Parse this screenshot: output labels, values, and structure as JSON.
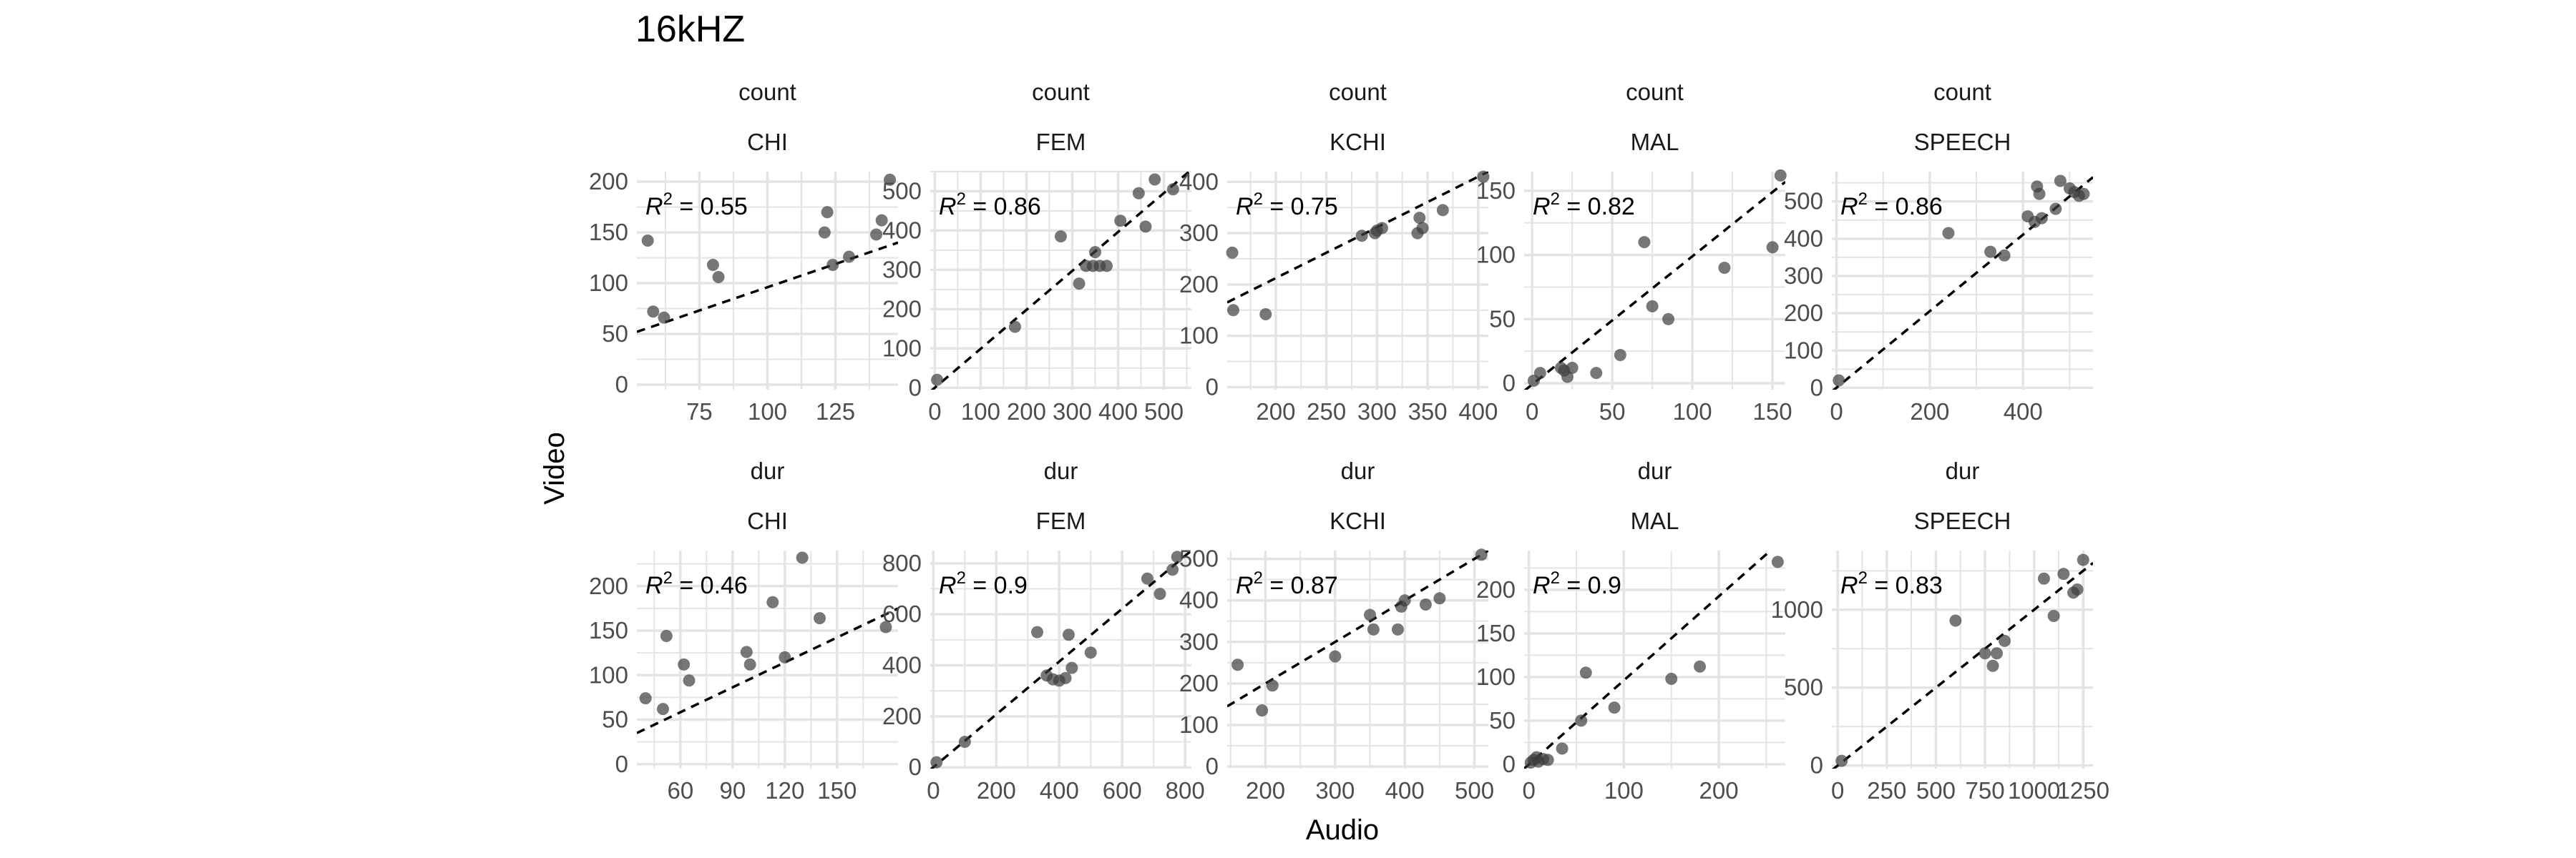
{
  "title": "16kHZ",
  "xlabel": "Audio",
  "ylabel": "Video",
  "r2_prefix": "R",
  "r2_exp": "2",
  "colors": {
    "point": "#3d3d3d",
    "grid": "#e4e4e4",
    "text": "#4d4d4d",
    "title": "#000000",
    "line": "#000000"
  },
  "chart_data": [
    {
      "type": "scatter",
      "row_label": "count",
      "col_label": "CHI",
      "r2": "0.55",
      "xlim": [
        52,
        148
      ],
      "ylim": [
        -5,
        210
      ],
      "xticks": [
        75,
        100,
        125
      ],
      "xtick_labels": [
        "75",
        "100",
        "125"
      ],
      "yticks": [
        0,
        50,
        100,
        150,
        200
      ],
      "ytick_labels": [
        "0",
        "50",
        "100",
        "150",
        "200"
      ],
      "fit": [
        [
          52,
          52
        ],
        [
          148,
          140
        ]
      ],
      "x": [
        56,
        58,
        62,
        80,
        82,
        121,
        122,
        124,
        130,
        140,
        142,
        145
      ],
      "y": [
        142,
        72,
        66,
        118,
        106,
        150,
        170,
        118,
        126,
        148,
        162,
        202
      ]
    },
    {
      "type": "scatter",
      "row_label": "count",
      "col_label": "FEM",
      "r2": "0.86",
      "xlim": [
        -10,
        560
      ],
      "ylim": [
        -5,
        550
      ],
      "xticks": [
        0,
        100,
        200,
        300,
        400,
        500
      ],
      "xtick_labels": [
        "0",
        "100",
        "200",
        "300",
        "400",
        "500"
      ],
      "yticks": [
        0,
        100,
        200,
        300,
        400,
        500
      ],
      "ytick_labels": [
        "0",
        "100",
        "200",
        "300",
        "400",
        "500"
      ],
      "fit": [
        [
          -10,
          -10
        ],
        [
          560,
          555
        ]
      ],
      "x": [
        5,
        175,
        275,
        315,
        330,
        345,
        350,
        360,
        375,
        405,
        445,
        460,
        480,
        520
      ],
      "y": [
        20,
        155,
        385,
        265,
        310,
        310,
        345,
        310,
        310,
        425,
        495,
        410,
        530,
        505
      ]
    },
    {
      "type": "scatter",
      "row_label": "count",
      "col_label": "KCHI",
      "r2": "0.75",
      "xlim": [
        152,
        410
      ],
      "ylim": [
        -5,
        420
      ],
      "xticks": [
        200,
        250,
        300,
        350,
        400
      ],
      "xtick_labels": [
        "200",
        "250",
        "300",
        "350",
        "400"
      ],
      "yticks": [
        0,
        100,
        200,
        300,
        400
      ],
      "ytick_labels": [
        "0",
        "100",
        "200",
        "300",
        "400"
      ],
      "fit": [
        [
          152,
          165
        ],
        [
          410,
          420
        ]
      ],
      "x": [
        157,
        158,
        190,
        285,
        298,
        300,
        305,
        340,
        342,
        345,
        365,
        405
      ],
      "y": [
        262,
        150,
        142,
        295,
        300,
        305,
        310,
        300,
        330,
        310,
        345,
        410
      ]
    },
    {
      "type": "scatter",
      "row_label": "count",
      "col_label": "MAL",
      "r2": "0.82",
      "xlim": [
        -5,
        158
      ],
      "ylim": [
        -5,
        165
      ],
      "xticks": [
        0,
        50,
        100,
        150
      ],
      "xtick_labels": [
        "0",
        "50",
        "100",
        "150"
      ],
      "yticks": [
        0,
        50,
        100,
        150
      ],
      "ytick_labels": [
        "0",
        "50",
        "100",
        "150"
      ],
      "fit": [
        [
          -5,
          -6
        ],
        [
          158,
          157
        ]
      ],
      "x": [
        1,
        5,
        18,
        20,
        22,
        25,
        40,
        55,
        70,
        75,
        85,
        120,
        150,
        155
      ],
      "y": [
        2,
        8,
        12,
        10,
        5,
        12,
        8,
        22,
        110,
        60,
        50,
        90,
        106,
        162
      ]
    },
    {
      "type": "scatter",
      "row_label": "count",
      "col_label": "SPEECH",
      "r2": "0.86",
      "xlim": [
        -10,
        550
      ],
      "ylim": [
        -5,
        580
      ],
      "xticks": [
        0,
        200,
        400
      ],
      "xtick_labels": [
        "0",
        "200",
        "400"
      ],
      "yticks": [
        0,
        100,
        200,
        300,
        400,
        500
      ],
      "ytick_labels": [
        "0",
        "100",
        "200",
        "300",
        "400",
        "500"
      ],
      "fit": [
        [
          -10,
          -10
        ],
        [
          550,
          565
        ]
      ],
      "x": [
        5,
        240,
        330,
        360,
        410,
        425,
        430,
        435,
        440,
        470,
        480,
        500,
        510,
        520,
        530
      ],
      "y": [
        20,
        415,
        365,
        355,
        460,
        445,
        540,
        520,
        455,
        480,
        555,
        535,
        525,
        515,
        520
      ]
    },
    {
      "type": "scatter",
      "row_label": "dur",
      "col_label": "CHI",
      "r2": "0.46",
      "xlim": [
        35,
        185
      ],
      "ylim": [
        -5,
        240
      ],
      "xticks": [
        60,
        90,
        120,
        150
      ],
      "xtick_labels": [
        "60",
        "90",
        "120",
        "150"
      ],
      "yticks": [
        0,
        50,
        100,
        150,
        200
      ],
      "ytick_labels": [
        "0",
        "50",
        "100",
        "150",
        "200"
      ],
      "fit": [
        [
          35,
          35
        ],
        [
          185,
          175
        ]
      ],
      "x": [
        40,
        50,
        52,
        62,
        65,
        98,
        100,
        113,
        120,
        130,
        140,
        178
      ],
      "y": [
        74,
        62,
        144,
        112,
        94,
        126,
        112,
        182,
        120,
        232,
        164,
        154
      ]
    },
    {
      "type": "scatter",
      "row_label": "dur",
      "col_label": "FEM",
      "r2": "0.9",
      "xlim": [
        -10,
        820
      ],
      "ylim": [
        -5,
        850
      ],
      "xticks": [
        0,
        200,
        400,
        600,
        800
      ],
      "xtick_labels": [
        "0",
        "200",
        "400",
        "600",
        "800"
      ],
      "yticks": [
        0,
        200,
        400,
        600,
        800
      ],
      "ytick_labels": [
        "0",
        "200",
        "400",
        "600",
        "800"
      ],
      "fit": [
        [
          -10,
          -10
        ],
        [
          820,
          850
        ]
      ],
      "x": [
        10,
        100,
        330,
        360,
        380,
        400,
        420,
        430,
        440,
        500,
        680,
        720,
        760,
        775
      ],
      "y": [
        20,
        100,
        530,
        360,
        345,
        340,
        350,
        520,
        390,
        450,
        740,
        680,
        775,
        825
      ]
    },
    {
      "type": "scatter",
      "row_label": "dur",
      "col_label": "KCHI",
      "r2": "0.87",
      "xlim": [
        145,
        520
      ],
      "ylim": [
        -5,
        520
      ],
      "xticks": [
        200,
        300,
        400,
        500
      ],
      "xtick_labels": [
        "200",
        "300",
        "400",
        "500"
      ],
      "yticks": [
        0,
        100,
        200,
        300,
        400,
        500
      ],
      "ytick_labels": [
        "0",
        "100",
        "200",
        "300",
        "400",
        "500"
      ],
      "fit": [
        [
          145,
          145
        ],
        [
          520,
          520
        ]
      ],
      "x": [
        160,
        195,
        210,
        300,
        350,
        355,
        390,
        395,
        400,
        430,
        450,
        510
      ],
      "y": [
        245,
        135,
        195,
        265,
        365,
        330,
        330,
        385,
        400,
        390,
        405,
        510
      ]
    },
    {
      "type": "scatter",
      "row_label": "dur",
      "col_label": "MAL",
      "r2": "0.9",
      "xlim": [
        -5,
        270
      ],
      "ylim": [
        -5,
        245
      ],
      "xticks": [
        0,
        100,
        200
      ],
      "xtick_labels": [
        "0",
        "100",
        "200"
      ],
      "yticks": [
        0,
        50,
        100,
        150,
        200
      ],
      "ytick_labels": [
        "0",
        "50",
        "100",
        "150",
        "200"
      ],
      "fit": [
        [
          -5,
          -5
        ],
        [
          270,
          260
        ]
      ],
      "x": [
        2,
        5,
        8,
        10,
        15,
        20,
        35,
        55,
        60,
        90,
        150,
        180,
        262
      ],
      "y": [
        2,
        5,
        8,
        3,
        6,
        5,
        18,
        50,
        105,
        65,
        98,
        112,
        232
      ]
    },
    {
      "type": "scatter",
      "row_label": "dur",
      "col_label": "SPEECH",
      "r2": "0.83",
      "xlim": [
        -30,
        1300
      ],
      "ylim": [
        -20,
        1380
      ],
      "xticks": [
        0,
        250,
        500,
        750,
        1000,
        1250
      ],
      "xtick_labels": [
        "0",
        "250",
        "500",
        "750",
        "1000",
        "1250"
      ],
      "yticks": [
        0,
        500,
        1000
      ],
      "ytick_labels": [
        "0",
        "500",
        "1000"
      ],
      "fit": [
        [
          -30,
          -30
        ],
        [
          1300,
          1300
        ]
      ],
      "x": [
        20,
        600,
        750,
        790,
        810,
        850,
        1050,
        1100,
        1150,
        1200,
        1220,
        1250
      ],
      "y": [
        30,
        930,
        720,
        640,
        720,
        800,
        1200,
        960,
        1230,
        1110,
        1130,
        1320
      ]
    }
  ]
}
